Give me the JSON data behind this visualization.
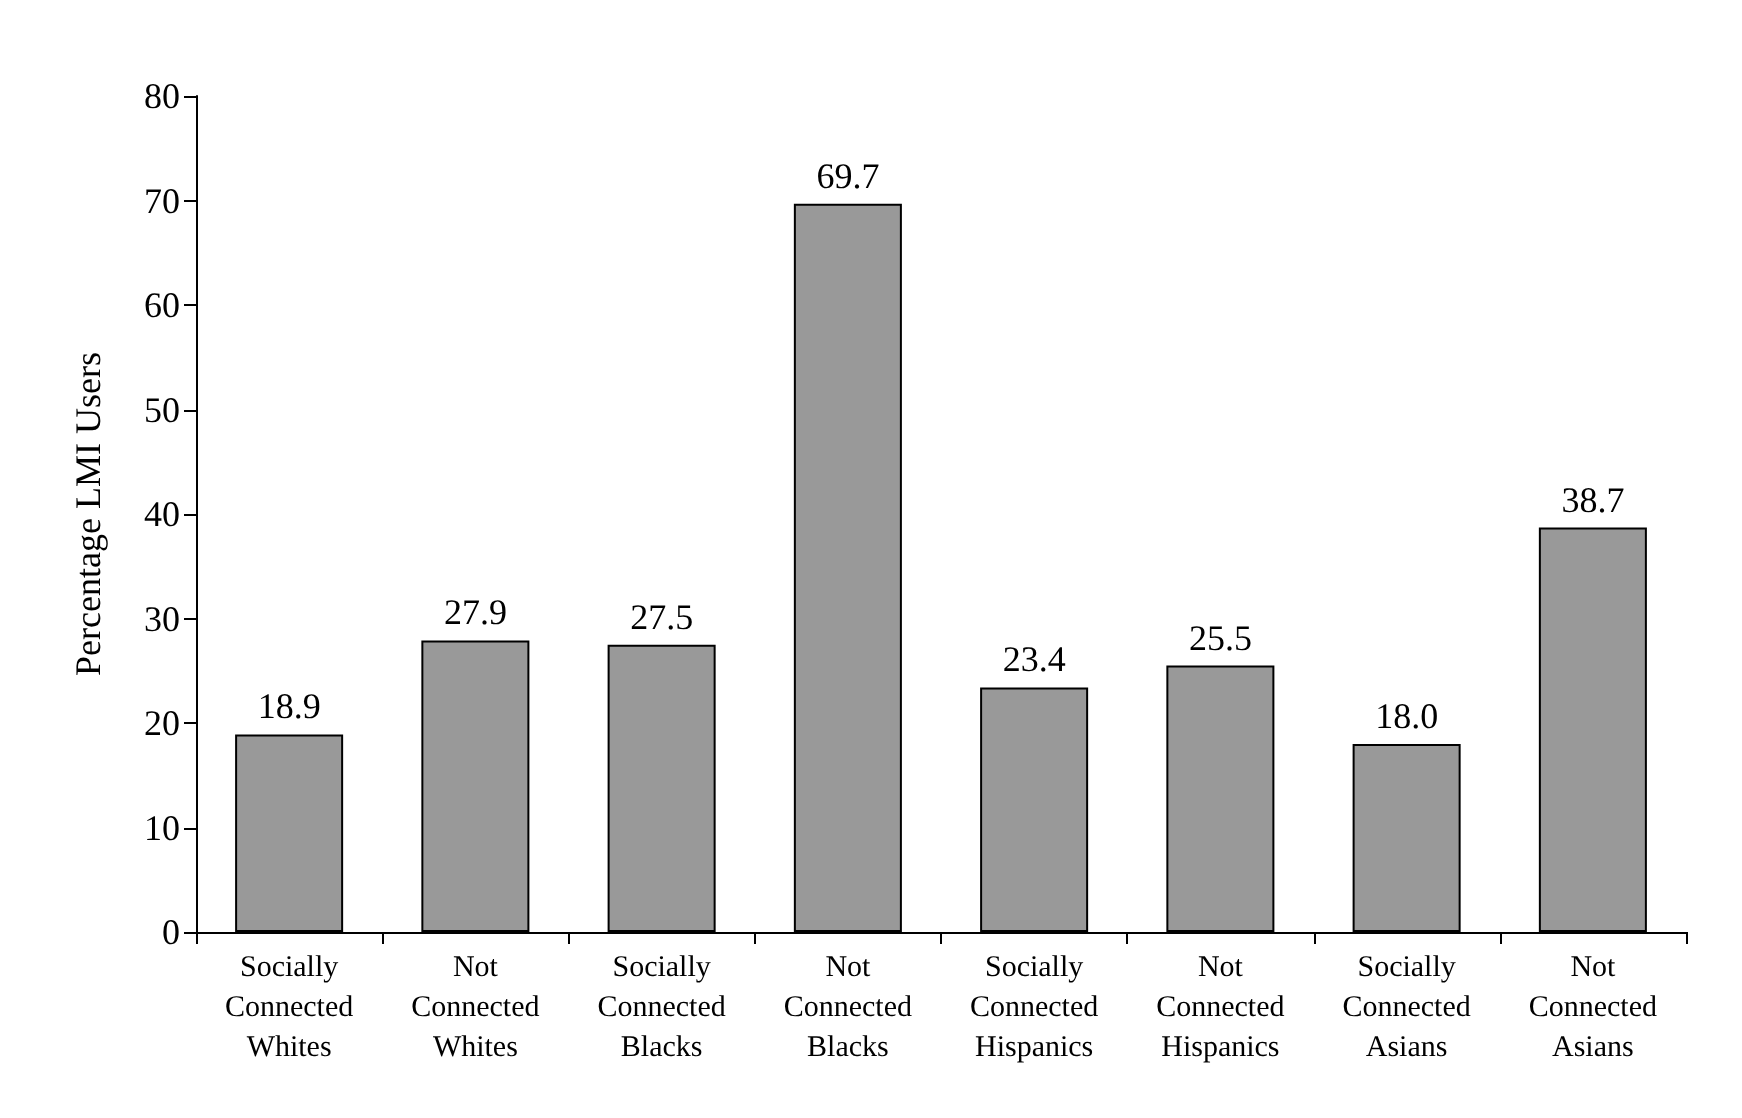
{
  "chart_data": {
    "type": "bar",
    "ylabel": "Percentage LMI Users",
    "categories": [
      "Socially Connected Whites",
      "Not Connected Whites",
      "Socially Connected Blacks",
      "Not Connected Blacks",
      "Socially Connected Hispanics",
      "Not Connected Hispanics",
      "Socially Connected Asians",
      "Not Connected Asians"
    ],
    "values": [
      18.9,
      27.9,
      27.5,
      69.7,
      23.4,
      25.5,
      18.0,
      38.7
    ],
    "value_labels": [
      "18.9",
      "27.9",
      "27.5",
      "69.7",
      "23.4",
      "25.5",
      "18.0",
      "38.7"
    ],
    "color": "#999999",
    "ylim": [
      0,
      80
    ],
    "yticks": [
      0,
      10,
      20,
      30,
      40,
      50,
      60,
      70,
      80
    ],
    "grid": false
  }
}
